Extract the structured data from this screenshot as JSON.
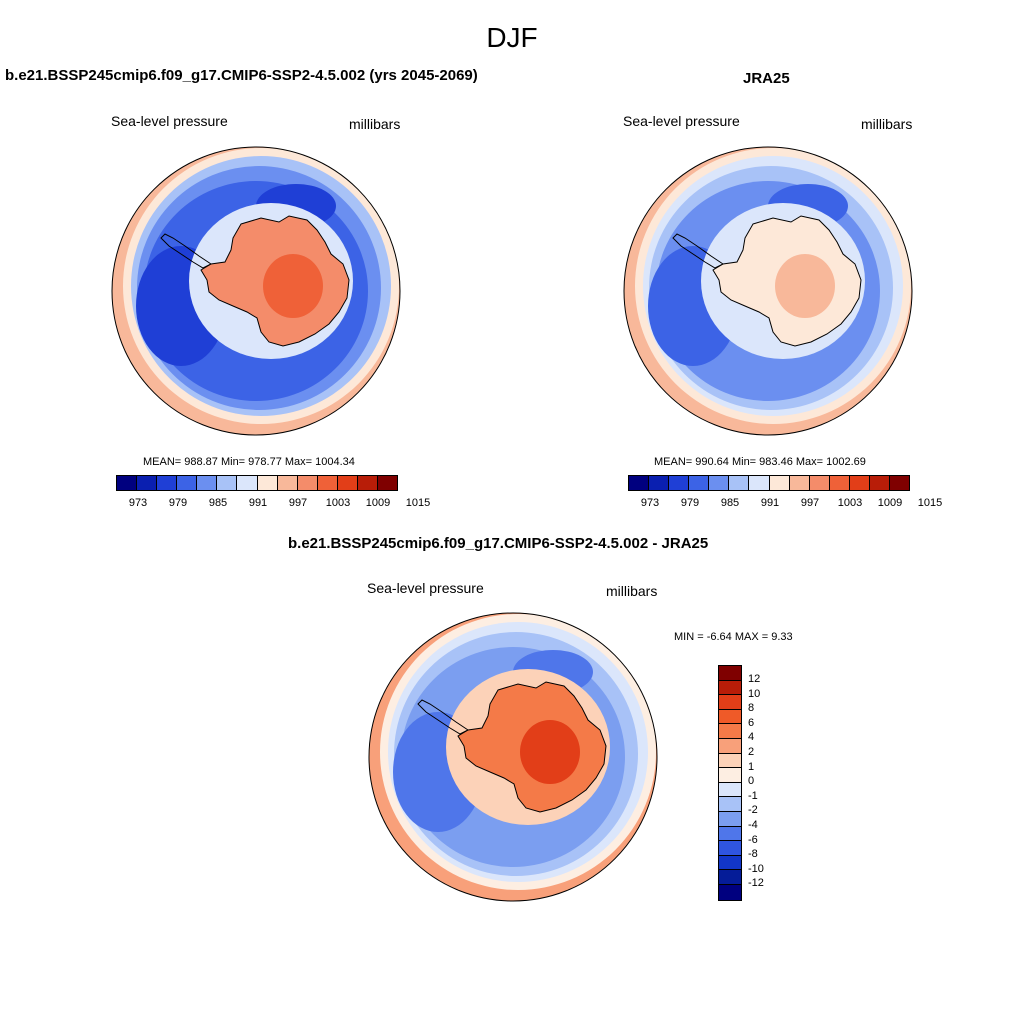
{
  "title": "DJF",
  "panels": [
    {
      "title": "b.e21.BSSP245cmip6.f09_g17.CMIP6-SSP2-4.5.002 (yrs 2045-2069)",
      "left_label": "Sea-level pressure",
      "right_label": "millibars",
      "stats": "MEAN= 988.87  Min= 978.77  Max= 1004.34"
    },
    {
      "title": "JRA25",
      "left_label": "Sea-level pressure",
      "right_label": "millibars",
      "stats": "MEAN= 990.64  Min= 983.46  Max= 1002.69"
    },
    {
      "title": "b.e21.BSSP245cmip6.f09_g17.CMIP6-SSP2-4.5.002 - JRA25",
      "left_label": "Sea-level pressure",
      "right_label": "millibars",
      "stats": "MIN =  -6.64 MAX =   9.33"
    }
  ],
  "colorbar_abs": {
    "colors": [
      "#00007f",
      "#0a1fb0",
      "#1f3fd6",
      "#3c63e6",
      "#6b8ff0",
      "#a8c2f7",
      "#dbe6fb",
      "#fde8d8",
      "#f8b89a",
      "#f48c6a",
      "#ef6138",
      "#e23e18",
      "#b81d08",
      "#7f0000"
    ],
    "ticks": [
      "973",
      "979",
      "985",
      "991",
      "997",
      "1003",
      "1009",
      "1015"
    ]
  },
  "colorbar_diff": {
    "colors": [
      "#7f0000",
      "#b81d08",
      "#e23e18",
      "#ef5a28",
      "#f47a48",
      "#f8a07a",
      "#fcd2b8",
      "#fdeee2",
      "#dbe6fb",
      "#a8c2f7",
      "#7b9ef0",
      "#4f76ea",
      "#2f55e0",
      "#1236c8",
      "#051c98",
      "#00007f"
    ],
    "ticks": [
      "12",
      "10",
      "8",
      "6",
      "4",
      "2",
      "1",
      "0",
      "-1",
      "-2",
      "-4",
      "-6",
      "-8",
      "-10",
      "-12"
    ]
  },
  "map_fields": {
    "panel1": {
      "ocean": "#3c63e6",
      "ring1": "#6b8ff0",
      "ring2": "#a8c2f7",
      "rim": "#fde8d8",
      "rim_outer": "#f8b89a",
      "low": "#1f3fd6",
      "land": "#f48c6a",
      "land_high": "#ef6138",
      "coast": "#dbe6fb"
    },
    "panel2": {
      "ocean": "#6b8ff0",
      "ring1": "#a8c2f7",
      "ring2": "#dbe6fb",
      "rim": "#fde8d8",
      "rim_outer": "#f8b89a",
      "low": "#3c63e6",
      "land": "#fde8d8",
      "land_high": "#f8b89a",
      "coast": "#dbe6fb"
    },
    "panel3": {
      "ocean": "#7b9ef0",
      "ring1": "#a8c2f7",
      "ring2": "#dbe6fb",
      "rim": "#fdeee2",
      "rim_outer": "#f8a07a",
      "low": "#4f76ea",
      "land": "#f47a48",
      "land_high": "#e23e18",
      "coast": "#fcd2b8"
    }
  }
}
